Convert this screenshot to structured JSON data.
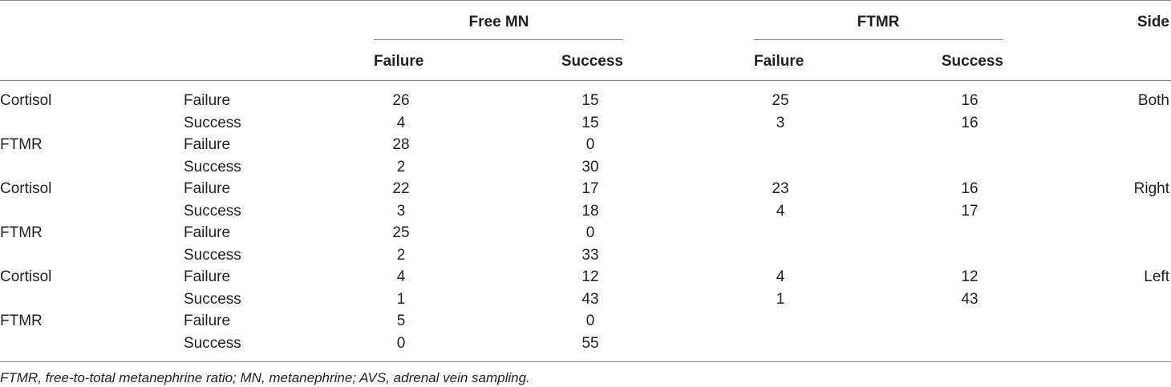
{
  "header": {
    "group1": "Free MN",
    "group2": "FTMR",
    "side": "Side",
    "sub": [
      "Failure",
      "Success",
      "Failure",
      "Success"
    ]
  },
  "rows": [
    {
      "test": "Cortisol",
      "outcome": "Failure",
      "mn_f": "26",
      "mn_s": "15",
      "ft_f": "25",
      "ft_s": "16",
      "side": "Both"
    },
    {
      "test": "",
      "outcome": "Success",
      "mn_f": "4",
      "mn_s": "15",
      "ft_f": "3",
      "ft_s": "16",
      "side": ""
    },
    {
      "test": "FTMR",
      "outcome": "Failure",
      "mn_f": "28",
      "mn_s": "0",
      "ft_f": "",
      "ft_s": "",
      "side": ""
    },
    {
      "test": "",
      "outcome": "Success",
      "mn_f": "2",
      "mn_s": "30",
      "ft_f": "",
      "ft_s": "",
      "side": ""
    },
    {
      "test": "Cortisol",
      "outcome": "Failure",
      "mn_f": "22",
      "mn_s": "17",
      "ft_f": "23",
      "ft_s": "16",
      "side": "Right"
    },
    {
      "test": "",
      "outcome": "Success",
      "mn_f": "3",
      "mn_s": "18",
      "ft_f": "4",
      "ft_s": "17",
      "side": ""
    },
    {
      "test": "FTMR",
      "outcome": "Failure",
      "mn_f": "25",
      "mn_s": "0",
      "ft_f": "",
      "ft_s": "",
      "side": ""
    },
    {
      "test": "",
      "outcome": "Success",
      "mn_f": "2",
      "mn_s": "33",
      "ft_f": "",
      "ft_s": "",
      "side": ""
    },
    {
      "test": "Cortisol",
      "outcome": "Failure",
      "mn_f": "4",
      "mn_s": "12",
      "ft_f": "4",
      "ft_s": "12",
      "side": "Left"
    },
    {
      "test": "",
      "outcome": "Success",
      "mn_f": "1",
      "mn_s": "43",
      "ft_f": "1",
      "ft_s": "43",
      "side": ""
    },
    {
      "test": "FTMR",
      "outcome": "Failure",
      "mn_f": "5",
      "mn_s": "0",
      "ft_f": "",
      "ft_s": "",
      "side": ""
    },
    {
      "test": "",
      "outcome": "Success",
      "mn_f": "0",
      "mn_s": "55",
      "ft_f": "",
      "ft_s": "",
      "side": ""
    }
  ],
  "footnote": "FTMR, free-to-total metanephrine ratio; MN, metanephrine; AVS, adrenal vein sampling."
}
